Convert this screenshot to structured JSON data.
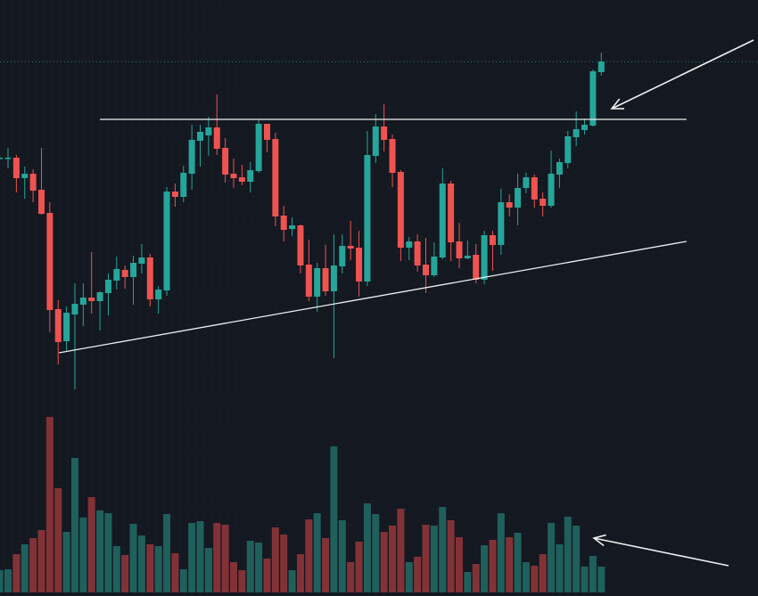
{
  "chart_data": {
    "type": "candlestick",
    "title": "",
    "xlabel": "",
    "ylabel": "",
    "grid": false,
    "ylim": [
      0,
      500
    ],
    "colors": {
      "background": "#141821",
      "up": "#26a69a",
      "down": "#ef5350",
      "volume_up": "#1f5f5c",
      "volume_down": "#823236",
      "annotation": "#f0f0f0",
      "last_price_line": "#26a69a"
    },
    "candles_ohlc": [
      [
        323,
        326,
        320,
        323
      ],
      [
        323,
        334,
        311,
        323
      ],
      [
        323,
        326,
        284,
        300
      ],
      [
        300,
        313,
        277,
        305
      ],
      [
        305,
        310,
        273,
        286
      ],
      [
        287,
        334,
        259,
        260
      ],
      [
        261,
        273,
        127,
        152
      ],
      [
        153,
        163,
        91,
        116
      ],
      [
        117,
        156,
        106,
        149
      ],
      [
        147,
        182,
        63,
        159
      ],
      [
        158,
        182,
        134,
        166
      ],
      [
        166,
        217,
        148,
        162
      ],
      [
        162,
        173,
        129,
        172
      ],
      [
        171,
        193,
        146,
        186
      ],
      [
        185,
        212,
        175,
        198
      ],
      [
        197,
        202,
        176,
        189
      ],
      [
        189,
        213,
        158,
        205
      ],
      [
        204,
        226,
        193,
        211
      ],
      [
        211,
        215,
        156,
        164
      ],
      [
        164,
        179,
        148,
        175
      ],
      [
        174,
        290,
        168,
        285
      ],
      [
        285,
        294,
        268,
        279
      ],
      [
        279,
        314,
        273,
        306
      ],
      [
        305,
        360,
        287,
        343
      ],
      [
        342,
        360,
        313,
        352
      ],
      [
        348,
        369,
        325,
        357
      ],
      [
        357,
        394,
        326,
        333
      ],
      [
        334,
        345,
        295,
        304
      ],
      [
        305,
        322,
        289,
        300
      ],
      [
        301,
        315,
        292,
        296
      ],
      [
        296,
        318,
        284,
        309
      ],
      [
        308,
        366,
        306,
        361
      ],
      [
        361,
        361,
        329,
        343
      ],
      [
        344,
        351,
        246,
        257
      ],
      [
        258,
        269,
        229,
        242
      ],
      [
        243,
        256,
        235,
        247
      ],
      [
        247,
        248,
        193,
        202
      ],
      [
        203,
        231,
        162,
        167
      ],
      [
        167,
        205,
        150,
        199
      ],
      [
        199,
        225,
        168,
        173
      ],
      [
        173,
        237,
        98,
        202
      ],
      [
        201,
        237,
        193,
        224
      ],
      [
        224,
        252,
        208,
        221
      ],
      [
        222,
        241,
        167,
        184
      ],
      [
        184,
        353,
        179,
        326
      ],
      [
        325,
        372,
        317,
        358
      ],
      [
        358,
        383,
        330,
        343
      ],
      [
        344,
        349,
        290,
        306
      ],
      [
        307,
        309,
        207,
        222
      ],
      [
        222,
        234,
        208,
        229
      ],
      [
        229,
        237,
        195,
        202
      ],
      [
        203,
        233,
        171,
        191
      ],
      [
        191,
        228,
        189,
        212
      ],
      [
        211,
        311,
        209,
        294
      ],
      [
        294,
        297,
        207,
        228
      ],
      [
        229,
        250,
        199,
        210
      ],
      [
        210,
        230,
        209,
        213
      ],
      [
        214,
        226,
        182,
        186
      ],
      [
        186,
        241,
        181,
        236
      ],
      [
        236,
        241,
        196,
        225
      ],
      [
        225,
        288,
        214,
        273
      ],
      [
        273,
        282,
        257,
        267
      ],
      [
        267,
        305,
        247,
        289
      ],
      [
        289,
        306,
        283,
        301
      ],
      [
        301,
        304,
        267,
        276
      ],
      [
        277,
        284,
        257,
        269
      ],
      [
        269,
        331,
        267,
        305
      ],
      [
        304,
        322,
        289,
        318
      ],
      [
        317,
        353,
        311,
        347
      ],
      [
        346,
        375,
        336,
        355
      ],
      [
        354,
        367,
        349,
        360
      ],
      [
        359,
        422,
        358,
        420
      ],
      [
        419,
        441,
        415,
        431
      ]
    ],
    "volume": [
      25,
      26,
      43,
      54,
      61,
      70,
      197,
      117,
      68,
      151,
      84,
      107,
      92,
      89,
      52,
      42,
      77,
      64,
      54,
      52,
      88,
      44,
      26,
      78,
      80,
      50,
      78,
      76,
      34,
      25,
      58,
      56,
      38,
      73,
      65,
      25,
      43,
      82,
      89,
      61,
      164,
      81,
      34,
      57,
      100,
      88,
      68,
      75,
      94,
      34,
      40,
      76,
      75,
      96,
      81,
      62,
      23,
      32,
      53,
      59,
      89,
      62,
      67,
      34,
      30,
      43,
      78,
      54,
      85,
      75,
      29,
      41,
      29
    ],
    "last_price": 431,
    "annotations": {
      "resistance_line": {
        "price": 366,
        "from_index": 12,
        "to_index": 82.2
      },
      "support_trendline": {
        "from": [
          7.1,
          104
        ],
        "to": [
          82.2,
          229
        ]
      }
    }
  }
}
